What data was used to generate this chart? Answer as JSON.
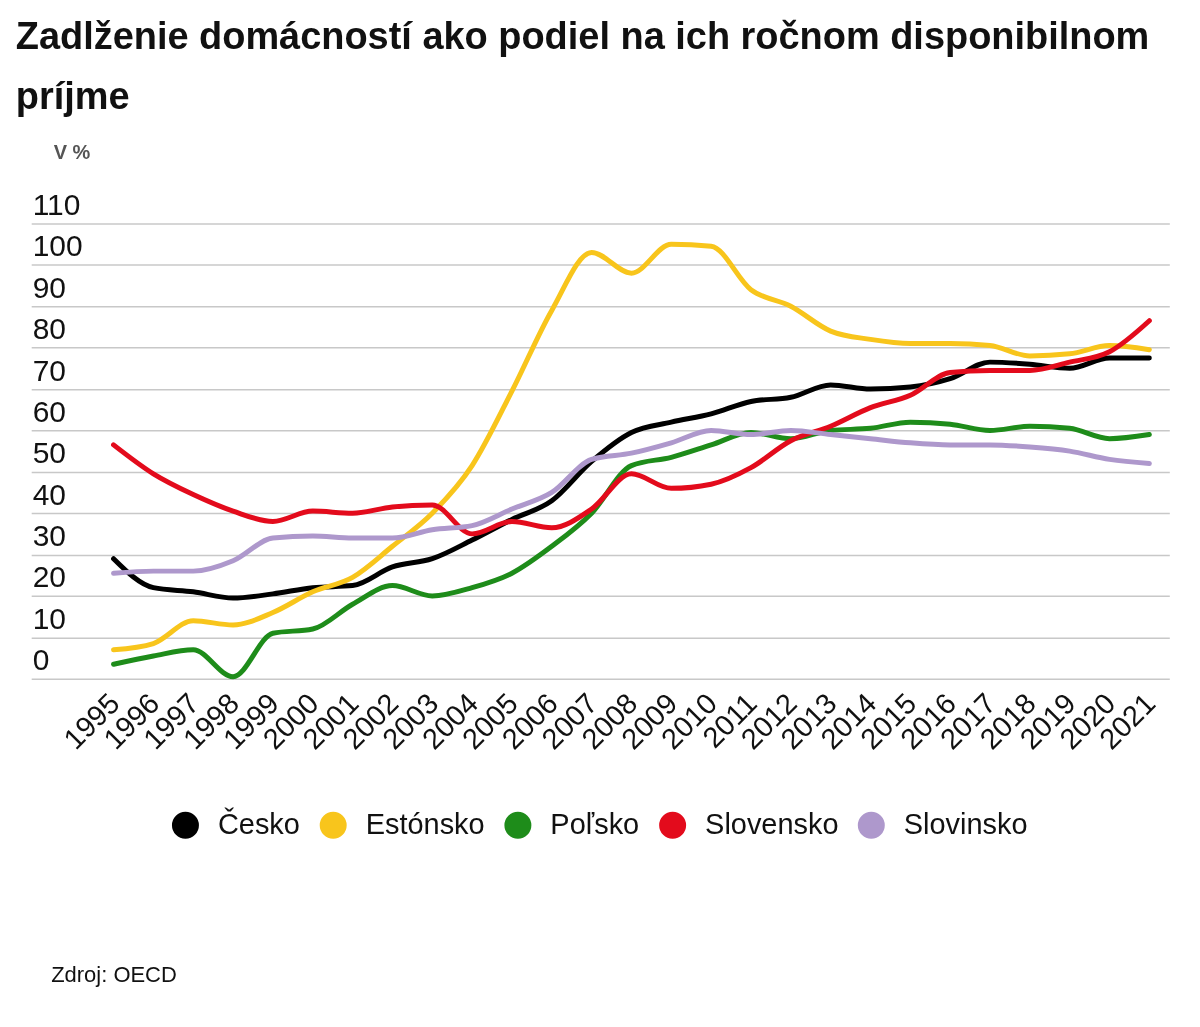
{
  "chart_data": {
    "type": "line",
    "title": "Zadlženie domácností ako podiel na ich ročnom disponibilnom príjme",
    "ylabel": "V %",
    "categories": [
      "1995",
      "1996",
      "1997",
      "1998",
      "1999",
      "2000",
      "2001",
      "2002",
      "2003",
      "2004",
      "2005",
      "2006",
      "2007",
      "2008",
      "2009",
      "2010",
      "2011",
      "2012",
      "2013",
      "2014",
      "2015",
      "2016",
      "2017",
      "2018",
      "2019",
      "2020",
      "2021"
    ],
    "ylim": [
      0,
      110
    ],
    "yticks": [
      0,
      10,
      20,
      30,
      40,
      50,
      60,
      70,
      80,
      90,
      100,
      110
    ],
    "grid": "y",
    "legend": "bottom",
    "series": [
      {
        "name": "Česko",
        "color": "#000000",
        "values": [
          29,
          22,
          21,
          19.5,
          20.5,
          22,
          22.5,
          27,
          29,
          33.5,
          38.5,
          43,
          52.5,
          59.5,
          62,
          64,
          67,
          68,
          71,
          70,
          70.5,
          72.5,
          76.5,
          76,
          75,
          77.5,
          77.5
        ]
      },
      {
        "name": "Estónsko",
        "color": "#f8c51c",
        "values": [
          7,
          8.5,
          14,
          13,
          16,
          21,
          24.5,
          32,
          40,
          51.5,
          69.5,
          89,
          103,
          98,
          105,
          104.5,
          94,
          90,
          84,
          82,
          81,
          81,
          80.5,
          78,
          78.5,
          80.5,
          79.5
        ]
      },
      {
        "name": "Poľsko",
        "color": "#1e8c1a",
        "values": [
          3.5,
          5.5,
          7,
          0.5,
          11,
          12,
          18,
          22.5,
          20,
          22,
          25.5,
          32,
          40,
          51.5,
          53.5,
          56.5,
          59.5,
          58,
          60,
          60.5,
          62,
          61.5,
          60,
          61,
          60.5,
          58,
          59
        ]
      },
      {
        "name": "Slovensko",
        "color": "#e30b1c",
        "values": [
          56.5,
          49.5,
          44.5,
          40.5,
          38,
          40.5,
          40,
          41.5,
          42,
          35,
          38,
          36.5,
          41,
          49.5,
          46,
          47,
          51,
          57.5,
          61,
          65.5,
          68.5,
          74,
          74.5,
          74.5,
          76.5,
          79,
          86.5
        ]
      },
      {
        "name": "Slovinsko",
        "color": "#ae98cc",
        "values": [
          25.5,
          26,
          26,
          28.5,
          34,
          34.5,
          34,
          34,
          36,
          37,
          41,
          45,
          53,
          54.5,
          57,
          60,
          59,
          60,
          59,
          58,
          57,
          56.5,
          56.5,
          56,
          55,
          53,
          52
        ]
      }
    ],
    "annotations": [
      "Zdroj: OECD"
    ]
  }
}
